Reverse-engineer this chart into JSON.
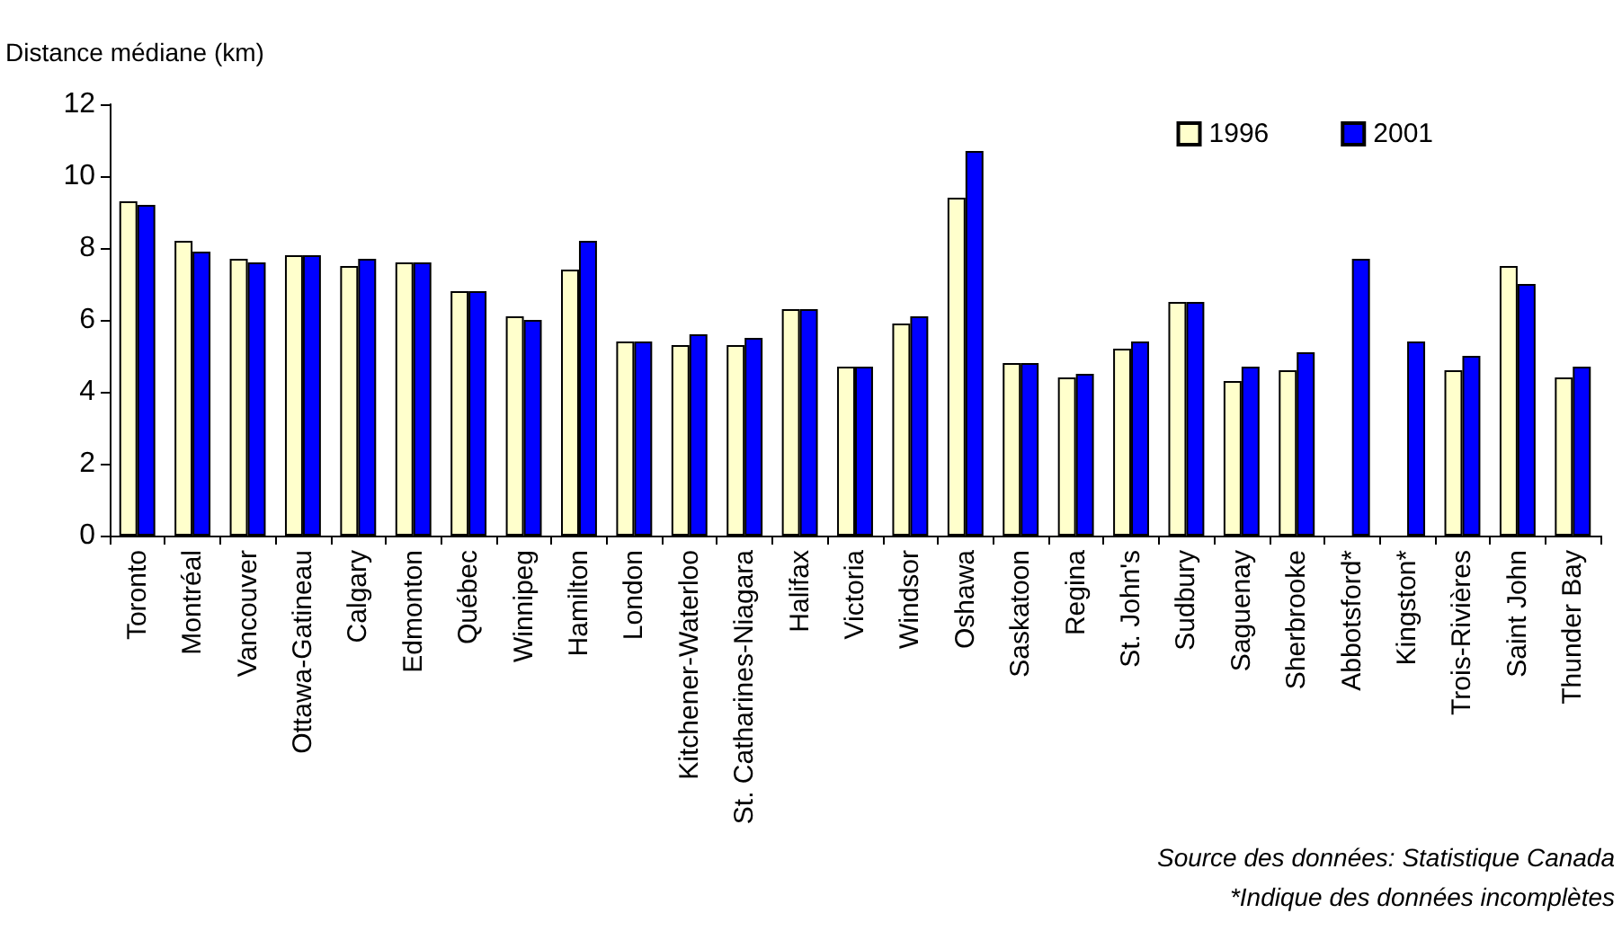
{
  "chart_data": {
    "type": "bar",
    "ylabel": "Distance médiane (km)",
    "categories": [
      "Toronto",
      "Montréal",
      "Vancouver",
      "Ottawa-Gatineau",
      "Calgary",
      "Edmonton",
      "Québec",
      "Winnipeg",
      "Hamilton",
      "London",
      "Kitchener-Waterloo",
      "St. Catharines-Niagara",
      "Halifax",
      "Victoria",
      "Windsor",
      "Oshawa",
      "Saskatoon",
      "Regina",
      "St. John's",
      "Sudbury",
      "Saguenay",
      "Sherbrooke",
      "Abbotsford*",
      "Kingston*",
      "Trois-Rivières",
      "Saint John",
      "Thunder Bay"
    ],
    "series": [
      {
        "name": "1996",
        "color": "#ffffcc",
        "values": [
          9.3,
          8.2,
          7.7,
          7.8,
          7.5,
          7.6,
          6.8,
          6.1,
          7.4,
          5.4,
          5.3,
          5.3,
          6.3,
          4.7,
          5.9,
          9.4,
          4.8,
          4.4,
          5.2,
          6.5,
          4.3,
          4.6,
          null,
          null,
          4.6,
          7.5,
          4.4
        ]
      },
      {
        "name": "2001",
        "color": "#0000ff",
        "values": [
          9.2,
          7.9,
          7.6,
          7.8,
          7.7,
          7.6,
          6.8,
          6.0,
          8.2,
          5.4,
          5.6,
          5.5,
          6.3,
          4.7,
          6.1,
          10.7,
          4.8,
          4.5,
          5.4,
          6.5,
          4.7,
          5.1,
          7.7,
          5.4,
          5.0,
          7.0,
          4.7
        ]
      }
    ],
    "ylim": [
      0,
      12
    ],
    "yticks": [
      0,
      2,
      4,
      6,
      8,
      10,
      12
    ],
    "grid": false,
    "legend": "top right",
    "annotations": [
      "Source des données: Statistique Canada",
      "*Indique des données incomplètes"
    ]
  }
}
